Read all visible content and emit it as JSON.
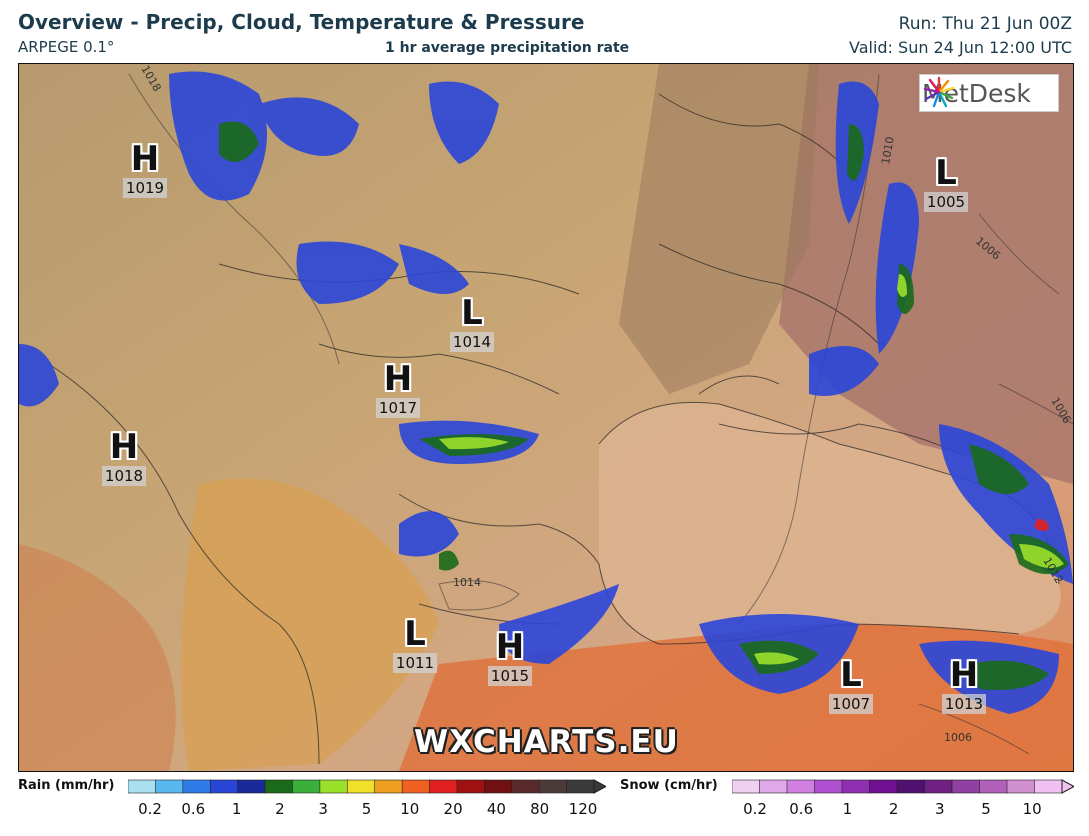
{
  "header": {
    "title": "Overview - Precip, Cloud, Temperature & Pressure",
    "model": "ARPEGE 0.1°",
    "subtitle": "1 hr average precipitation rate",
    "run": "Run: Thu 21 Jun 00Z",
    "valid": "Valid: Sun 24 Jun 12:00 UTC"
  },
  "logo": {
    "text": "MetDesk"
  },
  "watermark": "WXCHARTS.EU",
  "pressure_centers": [
    {
      "type": "H",
      "value": "1019"
    },
    {
      "type": "L",
      "value": "1005"
    },
    {
      "type": "L",
      "value": "1014"
    },
    {
      "type": "H",
      "value": "1017"
    },
    {
      "type": "H",
      "value": "1018"
    },
    {
      "type": "L",
      "value": "1011"
    },
    {
      "type": "H",
      "value": "1015"
    },
    {
      "type": "L",
      "value": "1007"
    },
    {
      "type": "H",
      "value": "1013"
    }
  ],
  "isobar_labels": [
    "1018",
    "1010",
    "1006",
    "1006",
    "1014",
    "1006",
    "1012"
  ],
  "legend": {
    "rain": {
      "label": "Rain (mm/hr)",
      "colors": [
        "#a8e0f0",
        "#58b8f0",
        "#2f7ce8",
        "#2a46d8",
        "#1a2a9a",
        "#1a6a1a",
        "#3ab03a",
        "#9be02a",
        "#f0e02a",
        "#f0a020",
        "#f06020",
        "#e02020",
        "#a01010",
        "#701010",
        "#5a2a2a",
        "#4a3a3a",
        "#3a3a3a"
      ],
      "ticks": [
        "0.2",
        "0.6",
        "1",
        "2",
        "3",
        "5",
        "10",
        "20",
        "40",
        "80",
        "120"
      ]
    },
    "snow": {
      "label": "Snow (cm/hr)",
      "colors": [
        "#f0d0f0",
        "#e0a8e8",
        "#d080e0",
        "#b050d0",
        "#9030b0",
        "#701090",
        "#501070",
        "#702080",
        "#9040a0",
        "#b060b8",
        "#d090d0",
        "#f0c0f0"
      ],
      "ticks": [
        "0.2",
        "0.6",
        "1",
        "2",
        "3",
        "5",
        "10"
      ]
    }
  }
}
